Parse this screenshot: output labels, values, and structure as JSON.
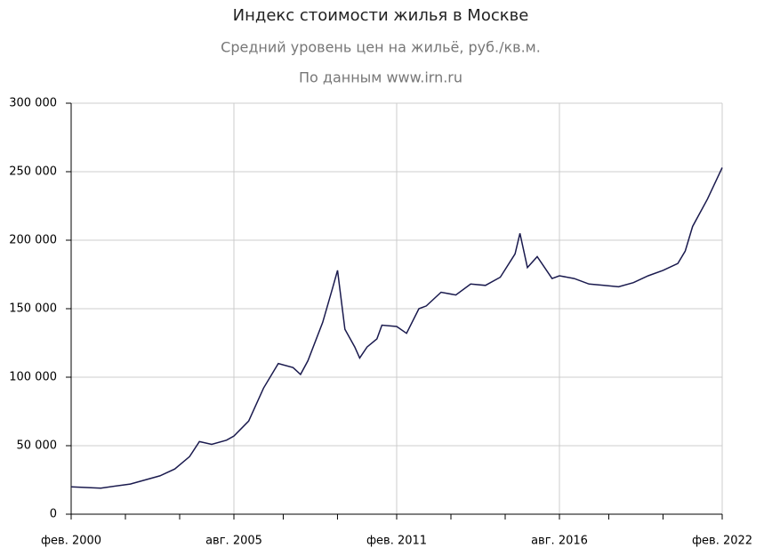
{
  "chart_data": {
    "type": "line",
    "title": "Индекс стоимости жилья в Москве",
    "subtitle": "Средний уровень цен на жильё, руб./кв.м.",
    "source": "По данным www.irn.ru",
    "x": [
      "2000-02",
      "2001-02",
      "2002-02",
      "2003-02",
      "2003-08",
      "2004-02",
      "2004-06",
      "2004-11",
      "2005-05",
      "2005-08",
      "2006-02",
      "2006-08",
      "2007-02",
      "2007-08",
      "2007-11",
      "2008-02",
      "2008-08",
      "2008-12",
      "2009-02",
      "2009-05",
      "2009-09",
      "2009-11",
      "2010-02",
      "2010-06",
      "2010-08",
      "2011-02",
      "2011-06",
      "2011-11",
      "2012-02",
      "2012-08",
      "2013-02",
      "2013-08",
      "2014-02",
      "2014-08",
      "2015-02",
      "2015-04",
      "2015-07",
      "2015-11",
      "2016-05",
      "2016-08",
      "2017-02",
      "2017-08",
      "2018-02",
      "2018-08",
      "2019-02",
      "2019-08",
      "2020-02",
      "2020-08",
      "2020-11",
      "2021-02",
      "2021-08",
      "2022-02"
    ],
    "series": [
      {
        "name": "Индекс",
        "color": "#1a1a4e",
        "values": [
          20000,
          19000,
          22000,
          28000,
          33000,
          42000,
          53000,
          51000,
          54000,
          57000,
          68000,
          92000,
          110000,
          107000,
          102000,
          112000,
          140000,
          165000,
          178000,
          135000,
          122000,
          114000,
          122000,
          128000,
          138000,
          137000,
          132000,
          150000,
          152000,
          162000,
          160000,
          168000,
          167000,
          173000,
          190000,
          205000,
          180000,
          188000,
          172000,
          174000,
          172000,
          168000,
          167000,
          166000,
          169000,
          174000,
          178000,
          183000,
          192000,
          210000,
          230000,
          253000
        ]
      }
    ],
    "xlim": [
      "2000-02",
      "2022-02"
    ],
    "xticks": [
      {
        "value": "2000-02",
        "label": "фев. 2000"
      },
      {
        "value": "2005-08",
        "label": "авг. 2005"
      },
      {
        "value": "2011-02",
        "label": "фев. 2011"
      },
      {
        "value": "2016-08",
        "label": "авг. 2016"
      },
      {
        "value": "2022-02",
        "label": "фев. 2022"
      }
    ],
    "minor_xticks": [
      "2001-12",
      "2003-10",
      "2007-04",
      "2009-02",
      "2012-12",
      "2014-10",
      "2018-04",
      "2020-02"
    ],
    "ylim": [
      0,
      300000
    ],
    "yticks": [
      0,
      {
        "value": 50000,
        "label": "50 000"
      },
      {
        "value": 100000,
        "label": "100 000"
      },
      {
        "value": 150000,
        "label": "150 000"
      },
      {
        "value": 200000,
        "label": "200 000"
      },
      {
        "value": 250000,
        "label": "250 000"
      },
      {
        "value": 300000,
        "label": "300 000"
      }
    ],
    "grid": true
  }
}
